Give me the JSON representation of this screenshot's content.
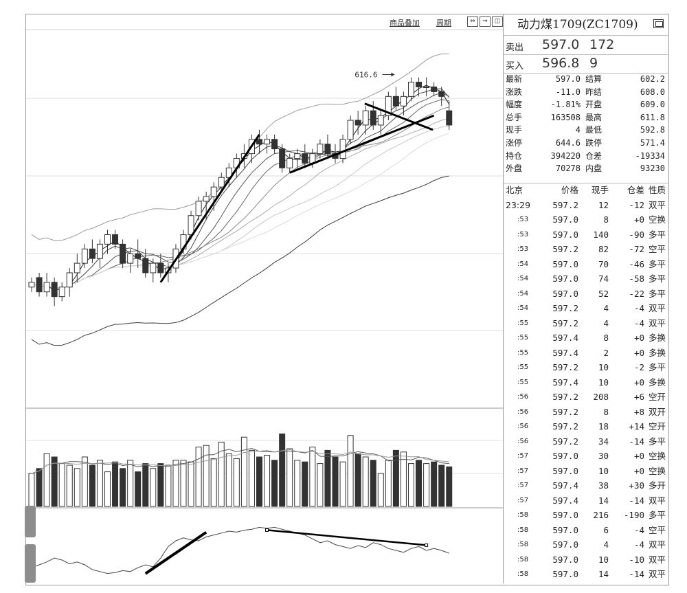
{
  "toolbar": {
    "overlay_label": "商品叠加",
    "period_label": "周期",
    "icons": [
      "arrow-left-right-icon",
      "arrow-expand-icon",
      "panel-split-icon"
    ]
  },
  "chart": {
    "high_annotation": "616.6",
    "colors": {
      "up_candle": "#ffffff",
      "down_candle": "#333333",
      "trend_line": "#000000",
      "bands": "#8a8a8a"
    }
  },
  "chart_data": {
    "type": "candlestick",
    "high_label": 616.6,
    "candles": [
      [
        572,
        574,
        571,
        573
      ],
      [
        574,
        575,
        570,
        571
      ],
      [
        571,
        575,
        570,
        573
      ],
      [
        573,
        574,
        568,
        570
      ],
      [
        570,
        573,
        569,
        572
      ],
      [
        572,
        576,
        570,
        575
      ],
      [
        575,
        579,
        573,
        577
      ],
      [
        577,
        581,
        576,
        580
      ],
      [
        580,
        582,
        577,
        578
      ],
      [
        578,
        582,
        576,
        581
      ],
      [
        581,
        584,
        579,
        583
      ],
      [
        583,
        584,
        580,
        581
      ],
      [
        581,
        582,
        576,
        577
      ],
      [
        577,
        580,
        575,
        579
      ],
      [
        579,
        582,
        576,
        578
      ],
      [
        578,
        580,
        574,
        575
      ],
      [
        575,
        578,
        573,
        577
      ],
      [
        577,
        579,
        574,
        575
      ],
      [
        575,
        577,
        573,
        576
      ],
      [
        576,
        581,
        575,
        580
      ],
      [
        580,
        584,
        579,
        583
      ],
      [
        583,
        588,
        582,
        587
      ],
      [
        587,
        591,
        586,
        590
      ],
      [
        590,
        592,
        586,
        591
      ],
      [
        591,
        594,
        588,
        593
      ],
      [
        593,
        596,
        592,
        595
      ],
      [
        595,
        598,
        593,
        597
      ],
      [
        597,
        600,
        595,
        599
      ],
      [
        599,
        602,
        597,
        600
      ],
      [
        600,
        604,
        598,
        603
      ],
      [
        603,
        605,
        600,
        602
      ],
      [
        602,
        604,
        600,
        603
      ],
      [
        603,
        604,
        600,
        601
      ],
      [
        601,
        602,
        596,
        597
      ],
      [
        597,
        600,
        596,
        599
      ],
      [
        599,
        601,
        597,
        600
      ],
      [
        600,
        602,
        597,
        598
      ],
      [
        598,
        601,
        597,
        600
      ],
      [
        600,
        603,
        599,
        602
      ],
      [
        602,
        604,
        599,
        600
      ],
      [
        600,
        602,
        598,
        599
      ],
      [
        599,
        604,
        598,
        603
      ],
      [
        603,
        608,
        602,
        607
      ],
      [
        607,
        609,
        604,
        606
      ],
      [
        606,
        610,
        604,
        609
      ],
      [
        609,
        611,
        605,
        606
      ],
      [
        606,
        609,
        604,
        608
      ],
      [
        608,
        613,
        607,
        612
      ],
      [
        612,
        614,
        609,
        610
      ],
      [
        610,
        613,
        608,
        612
      ],
      [
        612,
        616,
        611,
        615
      ],
      [
        615,
        616,
        612,
        614
      ],
      [
        614,
        616,
        612,
        614
      ],
      [
        614,
        615,
        612,
        613
      ],
      [
        613,
        614,
        610,
        612
      ],
      [
        609,
        611,
        605,
        606
      ]
    ],
    "volume": [
      20,
      23,
      32,
      30,
      26,
      25,
      23,
      30,
      25,
      28,
      21,
      27,
      23,
      28,
      21,
      26,
      23,
      26,
      25,
      28,
      28,
      27,
      36,
      37,
      29,
      39,
      32,
      29,
      42,
      34,
      30,
      31,
      28,
      44,
      35,
      28,
      27,
      36,
      26,
      34,
      30,
      27,
      43,
      32,
      30,
      28,
      20,
      28,
      34,
      33,
      26,
      28,
      26,
      27,
      25,
      24
    ],
    "oscillator": [
      -18,
      -15,
      -12,
      -8,
      -10,
      -14,
      -12,
      -15,
      -20,
      -22,
      -24,
      -23,
      -21,
      -22,
      -18,
      -15,
      -17,
      -8,
      4,
      10,
      13,
      11,
      10,
      14,
      16,
      18,
      20,
      19,
      21,
      22,
      24,
      23,
      24,
      22,
      20,
      18,
      16,
      12,
      8,
      10,
      6,
      4,
      2,
      5,
      3,
      8,
      6,
      2,
      0,
      -2,
      2,
      4,
      0,
      2,
      0,
      -3
    ]
  },
  "quote": {
    "title": "动力煤1709(ZC1709)",
    "sell": {
      "label": "卖出",
      "price": "597.0",
      "vol": "172"
    },
    "buy": {
      "label": "买入",
      "price": "596.8",
      "vol": "9"
    },
    "stats": [
      {
        "l1": "最新",
        "v1": "597.0",
        "l2": "结算",
        "v2": "602.2"
      },
      {
        "l1": "涨跌",
        "v1": "-11.0",
        "l2": "昨结",
        "v2": "608.0"
      },
      {
        "l1": "幅度",
        "v1": "-1.81%",
        "l2": "开盘",
        "v2": "609.0"
      },
      {
        "l1": "总手",
        "v1": "163508",
        "l2": "最高",
        "v2": "611.8"
      },
      {
        "l1": "现手",
        "v1": "4",
        "l2": "最低",
        "v2": "592.8"
      },
      {
        "l1": "涨停",
        "v1": "644.6",
        "l2": "跌停",
        "v2": "571.4"
      },
      {
        "l1": "持仓",
        "v1": "394220",
        "l2": "仓差",
        "v2": "-19334"
      },
      {
        "l1": "外盘",
        "v1": "70278",
        "l2": "内盘",
        "v2": "93230"
      }
    ],
    "ticks_header": {
      "time": "北京",
      "price": "价格",
      "vol": "现手",
      "diff": "仓差",
      "nature": "性质"
    },
    "ticks": [
      {
        "t": "23:29",
        "p": "597.2",
        "v": "12",
        "d": "-12",
        "n": "双平"
      },
      {
        "t": ":53",
        "p": "597.0",
        "v": "8",
        "d": "+0",
        "n": "空换"
      },
      {
        "t": ":53",
        "p": "597.0",
        "v": "140",
        "d": "-90",
        "n": "多平"
      },
      {
        "t": ":53",
        "p": "597.2",
        "v": "82",
        "d": "-72",
        "n": "空平"
      },
      {
        "t": ":54",
        "p": "597.0",
        "v": "70",
        "d": "-46",
        "n": "多平"
      },
      {
        "t": ":54",
        "p": "597.0",
        "v": "74",
        "d": "-58",
        "n": "多平"
      },
      {
        "t": ":54",
        "p": "597.0",
        "v": "52",
        "d": "-22",
        "n": "多平"
      },
      {
        "t": ":54",
        "p": "597.2",
        "v": "4",
        "d": "-4",
        "n": "双平"
      },
      {
        "t": ":55",
        "p": "597.2",
        "v": "4",
        "d": "-4",
        "n": "双平"
      },
      {
        "t": ":55",
        "p": "597.4",
        "v": "8",
        "d": "+0",
        "n": "多换"
      },
      {
        "t": ":55",
        "p": "597.4",
        "v": "2",
        "d": "+0",
        "n": "多换"
      },
      {
        "t": ":55",
        "p": "597.2",
        "v": "10",
        "d": "-2",
        "n": "多平"
      },
      {
        "t": ":55",
        "p": "597.4",
        "v": "10",
        "d": "+0",
        "n": "多换"
      },
      {
        "t": ":56",
        "p": "597.2",
        "v": "208",
        "d": "+6",
        "n": "空开"
      },
      {
        "t": ":56",
        "p": "597.2",
        "v": "8",
        "d": "+8",
        "n": "双开"
      },
      {
        "t": ":56",
        "p": "597.2",
        "v": "18",
        "d": "+14",
        "n": "空开"
      },
      {
        "t": ":56",
        "p": "597.2",
        "v": "34",
        "d": "-14",
        "n": "多平"
      },
      {
        "t": ":57",
        "p": "597.0",
        "v": "30",
        "d": "+0",
        "n": "空换"
      },
      {
        "t": ":57",
        "p": "597.0",
        "v": "10",
        "d": "+0",
        "n": "空换"
      },
      {
        "t": ":57",
        "p": "597.4",
        "v": "38",
        "d": "+30",
        "n": "多开"
      },
      {
        "t": ":57",
        "p": "597.4",
        "v": "14",
        "d": "-14",
        "n": "双平"
      },
      {
        "t": ":58",
        "p": "597.0",
        "v": "216",
        "d": "-190",
        "n": "多平"
      },
      {
        "t": ":58",
        "p": "597.0",
        "v": "6",
        "d": "-4",
        "n": "空平"
      },
      {
        "t": ":58",
        "p": "597.0",
        "v": "4",
        "d": "-4",
        "n": "双平"
      },
      {
        "t": ":58",
        "p": "597.0",
        "v": "10",
        "d": "-10",
        "n": "双平"
      },
      {
        "t": ":58",
        "p": "597.0",
        "v": "14",
        "d": "-14",
        "n": "双平"
      }
    ]
  }
}
